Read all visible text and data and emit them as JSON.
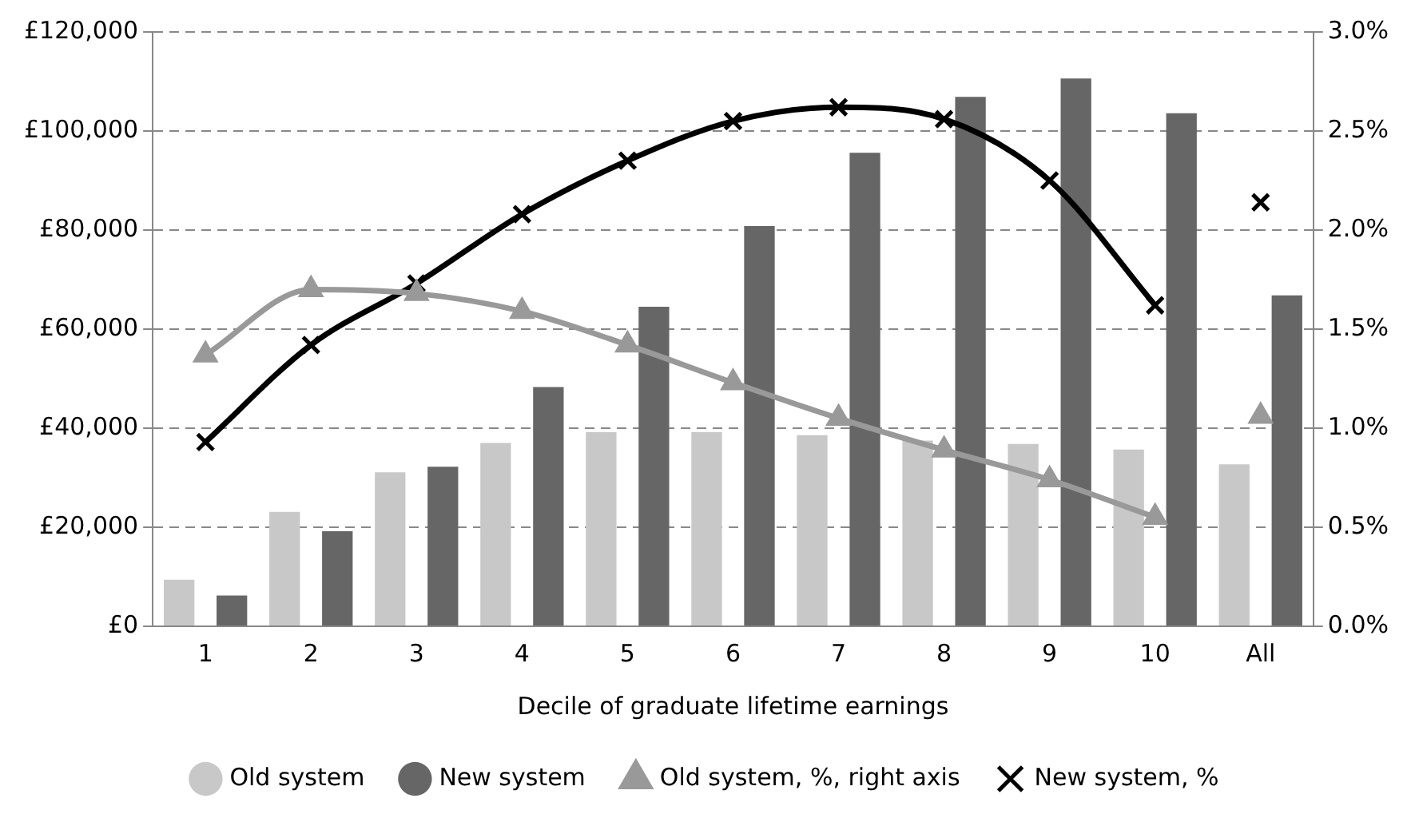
{
  "chart_data": {
    "type": "bar",
    "xlabel": "Decile of graduate lifetime earnings",
    "categories": [
      "1",
      "2",
      "3",
      "4",
      "5",
      "6",
      "7",
      "8",
      "9",
      "10",
      "All"
    ],
    "series": [
      {
        "name": "Old system",
        "color": "#c8c8c8",
        "values": [
          9400,
          23100,
          31100,
          37000,
          39200,
          39200,
          38600,
          37500,
          36800,
          35700,
          32700
        ]
      },
      {
        "name": "New system",
        "color": "#666666",
        "values": [
          6200,
          19200,
          32200,
          48300,
          64500,
          80800,
          95600,
          106900,
          110600,
          103600,
          66800
        ]
      },
      {
        "name": "Old system, %, right axis",
        "type": "line",
        "axis": "y2",
        "marker": "triangle",
        "color": "#999999",
        "values": [
          1.37,
          1.7,
          1.68,
          1.59,
          1.42,
          1.23,
          1.05,
          0.89,
          0.74,
          0.55,
          null
        ]
      },
      {
        "name": "New system, %",
        "type": "line",
        "axis": "y2",
        "marker": "cross",
        "color": "#000000",
        "values": [
          0.93,
          1.42,
          1.73,
          2.08,
          2.35,
          2.55,
          2.62,
          2.56,
          2.25,
          1.62,
          null
        ]
      },
      {
        "type": "scatter",
        "axis": "y2",
        "marker": "triangle",
        "color": "#999999",
        "x": [
          "All"
        ],
        "values": [
          1.06
        ]
      },
      {
        "type": "scatter",
        "axis": "y2",
        "marker": "cross",
        "color": "#000000",
        "x": [
          "All"
        ],
        "values": [
          2.14
        ]
      }
    ],
    "ylim": [
      0,
      120000
    ],
    "yticks": [
      {
        "value": 0,
        "label": "£0"
      },
      {
        "value": 20000,
        "label": "£20,000"
      },
      {
        "value": 40000,
        "label": "£40,000"
      },
      {
        "value": 60000,
        "label": "£60,000"
      },
      {
        "value": 80000,
        "label": "£80,000"
      },
      {
        "value": 100000,
        "label": "£100,000"
      },
      {
        "value": 120000,
        "label": "£120,000"
      }
    ],
    "y2lim": [
      0,
      3
    ],
    "y2ticks": [
      {
        "value": 0,
        "label": "0.0%"
      },
      {
        "value": 0.5,
        "label": "0.5%"
      },
      {
        "value": 1,
        "label": "1.0%"
      },
      {
        "value": 1.5,
        "label": "1.5%"
      },
      {
        "value": 2,
        "label": "2.0%"
      },
      {
        "value": 2.5,
        "label": "2.5%"
      },
      {
        "value": 3,
        "label": "3.0%"
      }
    ],
    "grid": "y",
    "legend": "bottom"
  }
}
